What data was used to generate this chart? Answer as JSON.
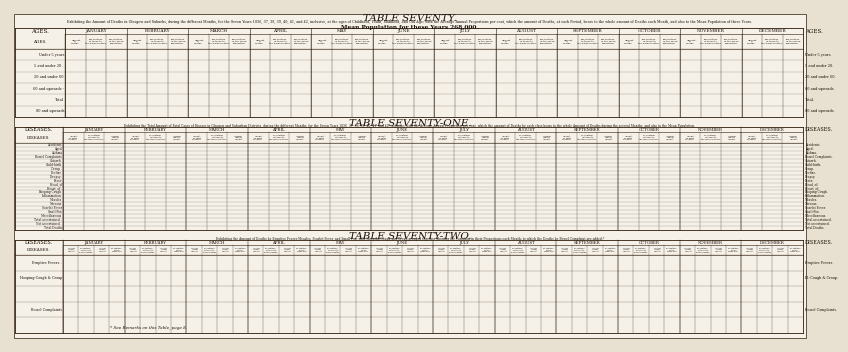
{
  "background_color": "#e8e0d0",
  "paper_color": "#f5f0e8",
  "title1": "TABLE SEVENTY.",
  "subtitle1_line1": "Exhibiting the Amount of Deaths in Glasgow and Suburbs, during the different Months, for the Seven Years 1836, 37, 38, 39, 40, 41, and 42, inclusive, at the ages of Childhood, Youth, Manhood, and Old Age; with the Average Annual Proportions per cent, which the amount of Deaths, at each Period, bears to the whole amount of Deaths each Month, and also to the Mean Population of these Years.",
  "subtitle1_line2": "Mean Population for these Years 268,000.",
  "title2": "TABLE SEVENTY-ONE.",
  "subtitle2": "Exhibiting the Total Amount of Fatal Cases of Disease in Glasgow and Suburban Districts, during the different Months, for the Seven Years 1836, 37, 38, 39, 40, 41, and 42, inclusive; with the Average Annual Proportion per cent, which the amount of Deaths by each class bears to the whole Amount of Deaths during the several Months, and also to the Mean Population.",
  "title3": "TABLE SEVENTY-TWO.",
  "subtitle3": "Exhibiting the Amount of Deaths by Eruptive Fevers-Measles, Scarlet Fever, and Small-Pox; with Hooping-Cough and Croup grouped together showing the variation in their Proportions each Month; to which the Deaths by Bowel Complaint are added.*",
  "footnote": "* See Remarks on this Table, page 8.",
  "months": [
    "JANUARY.",
    "FEBRUARY.",
    "MARCH.",
    "APRIL.",
    "MAY.",
    "JUNE.",
    "JULY.",
    "AUGUST.",
    "SEPTEMBER.",
    "OCTOBER.",
    "NOVEMBER.",
    "DECEMBER."
  ],
  "ages_rows": [
    "Under 5 years",
    "5 and under 20 .",
    "20 and under 60",
    "60 and upwards -",
    "Total",
    "80 and upwards"
  ],
  "ages_rows_right": [
    "Under 5 years.",
    "5 and under 20.",
    "20 and under 60.",
    "60 and upwards.",
    "Total.",
    "80 and upwards."
  ],
  "diseases": [
    "Accidents",
    "Aged",
    "Asthma",
    "Bowel Complaints",
    "Catarrh",
    "Child-birth",
    "Croup .",
    "Decline",
    "Dropsy .",
    "Fever",
    "Head, of",
    "Heart, of .",
    "Hooping-Cough",
    "Inflammation",
    "Measles",
    "Nervous",
    "Scarlet Fever",
    "Small-Pox",
    "Miscellaneous",
    "Total ascertained .",
    "Not ascertained .",
    "Total Deaths"
  ],
  "diseases_right": [
    "Accidents.",
    "Aged.",
    "Asthma.",
    "Bowel Complaints.",
    "Catarrh.",
    "Child-birth.",
    "Croup.",
    "Decline.",
    "Dropsy.",
    "Fever.",
    "Head, of.",
    "Heart, of.",
    "Hooping-Cough.",
    "Inflammation.",
    "Measles.",
    "Nervous.",
    "Scarlet Fever.",
    "Small-Pox.",
    "Miscellaneous.",
    "Total ascertained.",
    "Not ascertained.",
    "Total Deaths."
  ],
  "t72_rows": [
    "Eruptive Fevers .",
    "Hooping-Cough & Croup",
    " ",
    "Bowel Complaints",
    " "
  ],
  "t72_rows_right": [
    "Eruptive Fevers.",
    "H.-Cough & Croup.",
    " ",
    "Bowel Complaints.",
    " "
  ],
  "text_color": "#1a1008",
  "line_color": "#2a1a08",
  "title_fontsize": 7.5
}
